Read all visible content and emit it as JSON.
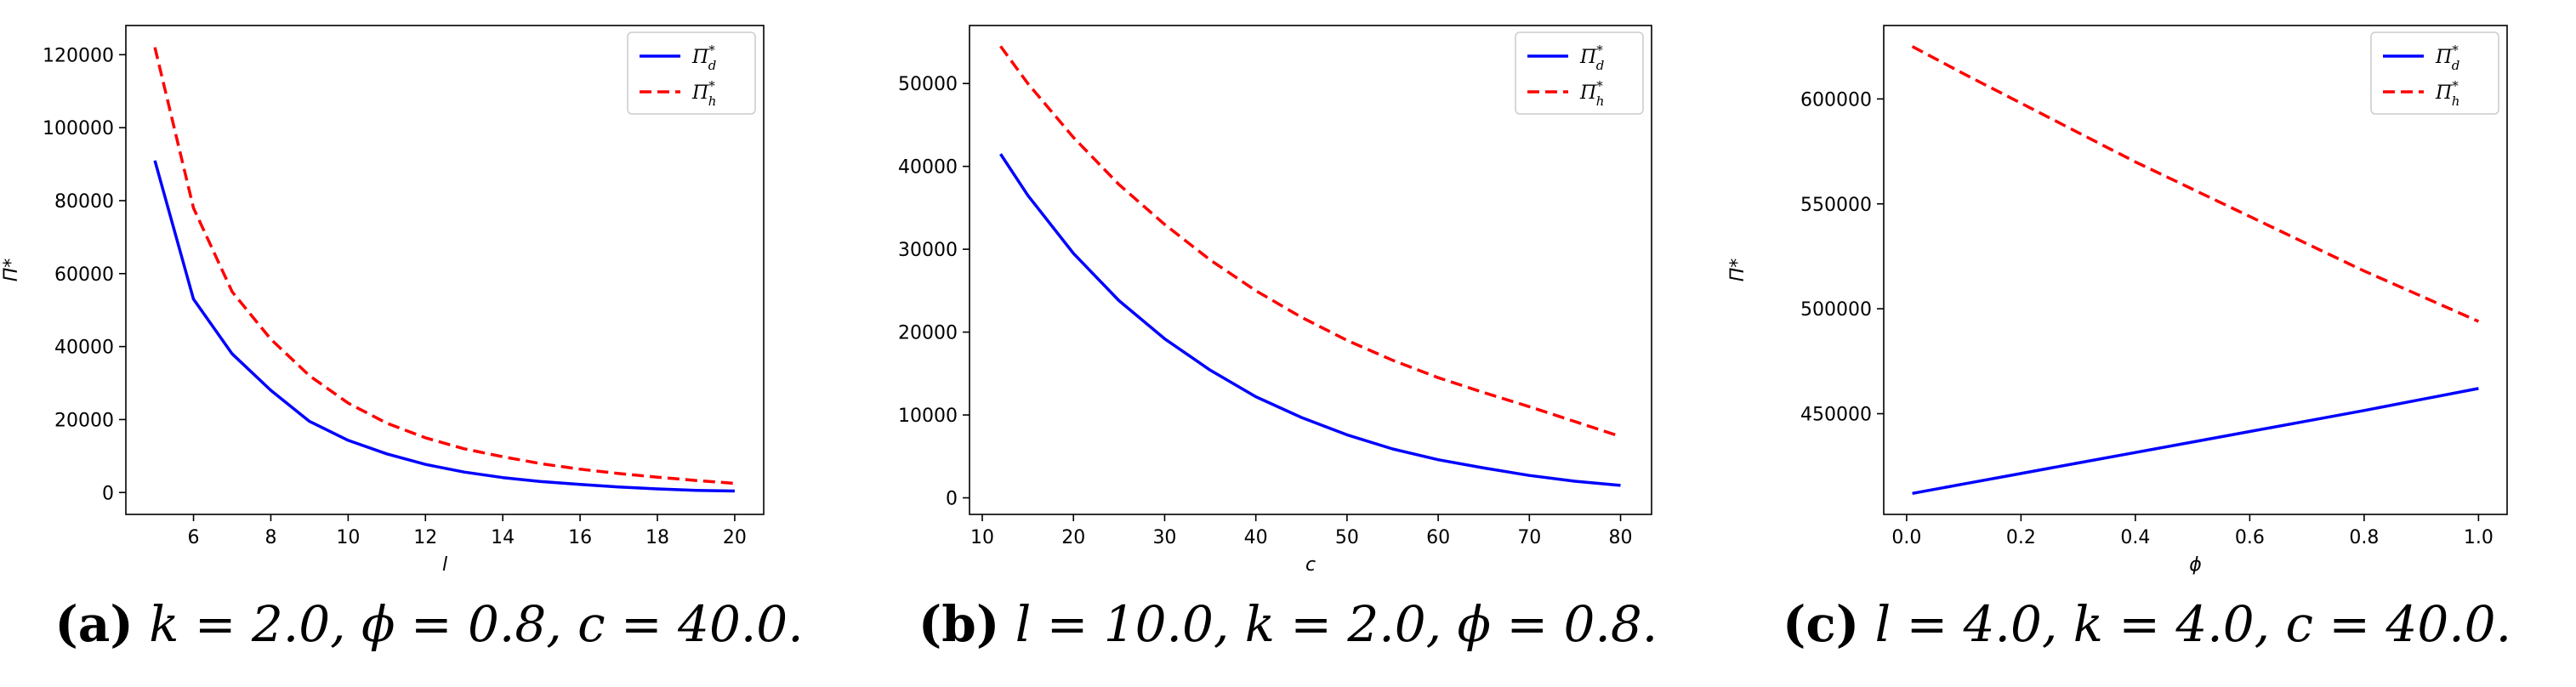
{
  "chart_data": [
    {
      "type": "line",
      "caption_label": "(a)",
      "caption_text": "k = 2.0, ϕ = 0.8, c = 40.0.",
      "xlabel": "l",
      "ylabel": "Π*",
      "xlim": [
        4.25,
        20.75
      ],
      "ylim": [
        -6000,
        128000
      ],
      "xticks": [
        6,
        8,
        10,
        12,
        14,
        16,
        18,
        20
      ],
      "yticks": [
        0,
        20000,
        40000,
        60000,
        80000,
        100000,
        120000
      ],
      "legend_position": "top-right",
      "x": [
        5,
        6,
        7,
        8,
        9,
        10,
        11,
        12,
        13,
        14,
        15,
        16,
        17,
        18,
        19,
        20
      ],
      "series": [
        {
          "name": "Π_d*",
          "color": "#0000ff",
          "style": "solid",
          "values": [
            91000,
            53000,
            38000,
            28000,
            19500,
            14300,
            10600,
            7700,
            5600,
            4100,
            3000,
            2200,
            1500,
            1000,
            600,
            400
          ]
        },
        {
          "name": "Π_h*",
          "color": "#ff0000",
          "style": "dashed",
          "values": [
            122000,
            78000,
            55000,
            42000,
            32000,
            24500,
            19000,
            15000,
            12000,
            9800,
            7900,
            6400,
            5200,
            4200,
            3300,
            2500
          ]
        }
      ]
    },
    {
      "type": "line",
      "caption_label": "(b)",
      "caption_text": "l = 10.0, k = 2.0, ϕ = 0.8.",
      "xlabel": "c",
      "ylabel": "Π*",
      "xlim": [
        8.6,
        83.4
      ],
      "ylim": [
        -2000,
        57000
      ],
      "xticks": [
        10,
        20,
        30,
        40,
        50,
        60,
        70,
        80
      ],
      "yticks": [
        0,
        10000,
        20000,
        30000,
        40000,
        50000
      ],
      "legend_position": "top-right",
      "x": [
        12,
        15,
        20,
        25,
        30,
        35,
        40,
        45,
        50,
        55,
        60,
        65,
        70,
        75,
        80
      ],
      "series": [
        {
          "name": "Π_d*",
          "color": "#0000ff",
          "style": "solid",
          "values": [
            41500,
            36500,
            29500,
            23800,
            19200,
            15400,
            12200,
            9700,
            7600,
            5900,
            4600,
            3600,
            2700,
            2000,
            1500
          ]
        },
        {
          "name": "Π_h*",
          "color": "#ff0000",
          "style": "dashed",
          "values": [
            54500,
            50000,
            43500,
            37800,
            33000,
            28700,
            25000,
            21800,
            19000,
            16600,
            14500,
            12700,
            11000,
            9200,
            7400
          ]
        }
      ]
    },
    {
      "type": "line",
      "caption_label": "(c)",
      "caption_text": "l = 4.0, k = 4.0, c = 40.0.",
      "xlabel": "ϕ",
      "ylabel": "Π*",
      "xlim": [
        -0.04,
        1.05
      ],
      "ylim": [
        402000,
        635000
      ],
      "xticks": [
        0.0,
        0.2,
        0.4,
        0.6,
        0.8,
        1.0
      ],
      "yticks": [
        450000,
        500000,
        550000,
        600000
      ],
      "legend_position": "top-right",
      "x": [
        0.01,
        0.1,
        0.2,
        0.3,
        0.4,
        0.5,
        0.6,
        0.7,
        0.8,
        0.9,
        1.0
      ],
      "series": [
        {
          "name": "Π_d*",
          "color": "#0000ff",
          "style": "solid",
          "values": [
            412000,
            416500,
            421500,
            426500,
            431500,
            436500,
            441500,
            446500,
            451500,
            456800,
            462000
          ]
        },
        {
          "name": "Π_h*",
          "color": "#ff0000",
          "style": "dashed",
          "values": [
            625000,
            612000,
            598000,
            584000,
            570000,
            557000,
            544000,
            531000,
            518000,
            506000,
            494000
          ]
        }
      ]
    }
  ]
}
